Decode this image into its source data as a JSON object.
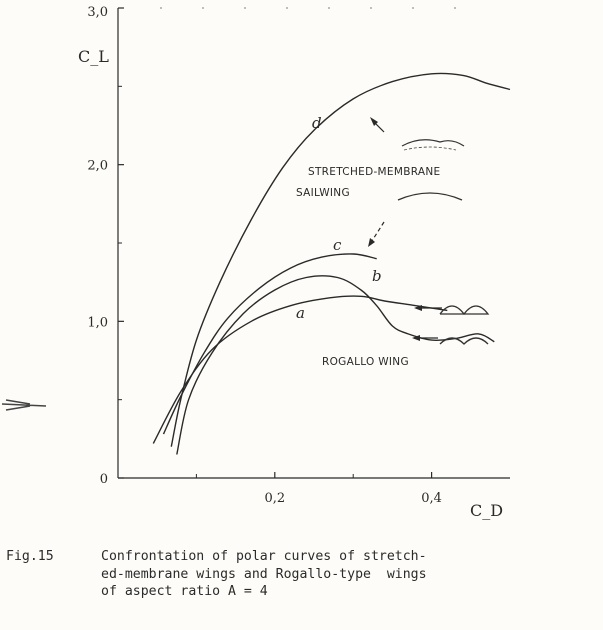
{
  "chart_data": {
    "type": "line",
    "xlabel": "C_D",
    "ylabel": "C_L",
    "xlim": [
      0,
      0.5
    ],
    "ylim": [
      0,
      3.0
    ],
    "x_ticks": [
      0.2,
      0.4
    ],
    "x_tick_labels": [
      "0,2",
      "0,4"
    ],
    "y_ticks": [
      0,
      1.0,
      2.0,
      3.0
    ],
    "y_tick_labels": [
      "0",
      "1,0",
      "2,0",
      "3,0"
    ],
    "grid": false,
    "series": [
      {
        "name": "a",
        "points": [
          [
            0.045,
            0.22
          ],
          [
            0.08,
            0.55
          ],
          [
            0.12,
            0.82
          ],
          [
            0.17,
            1.0
          ],
          [
            0.22,
            1.1
          ],
          [
            0.27,
            1.15
          ],
          [
            0.31,
            1.16
          ],
          [
            0.34,
            1.13
          ],
          [
            0.38,
            1.1
          ],
          [
            0.42,
            1.07
          ]
        ]
      },
      {
        "name": "b",
        "points": [
          [
            0.075,
            0.15
          ],
          [
            0.09,
            0.5
          ],
          [
            0.12,
            0.8
          ],
          [
            0.16,
            1.05
          ],
          [
            0.2,
            1.2
          ],
          [
            0.24,
            1.28
          ],
          [
            0.28,
            1.28
          ],
          [
            0.31,
            1.2
          ],
          [
            0.33,
            1.1
          ],
          [
            0.35,
            0.97
          ],
          [
            0.37,
            0.92
          ],
          [
            0.4,
            0.88
          ],
          [
            0.43,
            0.89
          ],
          [
            0.46,
            0.92
          ],
          [
            0.48,
            0.87
          ]
        ]
      },
      {
        "name": "c",
        "points": [
          [
            0.058,
            0.28
          ],
          [
            0.08,
            0.52
          ],
          [
            0.11,
            0.8
          ],
          [
            0.14,
            1.02
          ],
          [
            0.18,
            1.21
          ],
          [
            0.22,
            1.34
          ],
          [
            0.26,
            1.41
          ],
          [
            0.3,
            1.43
          ],
          [
            0.33,
            1.4
          ]
        ]
      },
      {
        "name": "d",
        "points": [
          [
            0.068,
            0.2
          ],
          [
            0.08,
            0.5
          ],
          [
            0.1,
            0.88
          ],
          [
            0.13,
            1.25
          ],
          [
            0.17,
            1.65
          ],
          [
            0.21,
            1.98
          ],
          [
            0.25,
            2.22
          ],
          [
            0.3,
            2.42
          ],
          [
            0.35,
            2.53
          ],
          [
            0.4,
            2.58
          ],
          [
            0.44,
            2.57
          ],
          [
            0.47,
            2.52
          ],
          [
            0.5,
            2.48
          ]
        ]
      }
    ],
    "annotations": [
      "STRETCHED-MEMBRANE",
      "SAILWING",
      "ROGALLO WING"
    ]
  },
  "caption": {
    "number": "Fig.15",
    "lines": [
      "Confrontation of polar curves of stretch-",
      "ed-membrane wings and Rogallo-type  wings",
      "of aspect ratio A = 4"
    ]
  }
}
